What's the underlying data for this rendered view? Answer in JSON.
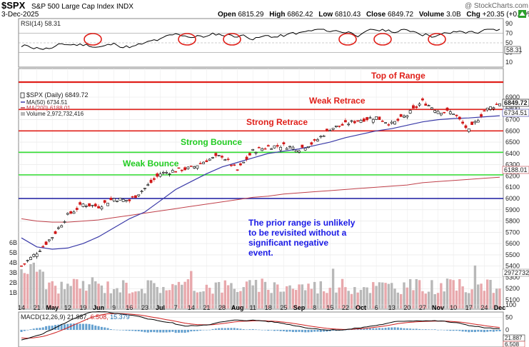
{
  "header": {
    "title": "$SPX",
    "subtitle": "S&P 500 Large Cap Index",
    "exchange": "INDX",
    "date": "3-Dec-2025",
    "watermark": "@ StockCharts.com",
    "open_label": "Open",
    "open": "6815.29",
    "high_label": "High",
    "high": "6862.42",
    "low_label": "Low",
    "low": "6810.43",
    "close_label": "Close",
    "close": "6849.72",
    "volume_label": "Volume",
    "volume": "3.0B",
    "chg_label": "Chg",
    "chg": "+20.35 (+0.30%)"
  },
  "rsi_panel": {
    "label": "RSI(14) 58.31",
    "current_badge": "58.31",
    "ticks": [
      "90",
      "70",
      "50",
      "30",
      "10"
    ]
  },
  "price_panel": {
    "legend_price": "$SPX (Daily) 6849.72",
    "legend_ma50": "MA(50) 6734.51",
    "legend_ma200": "MA(200) 6188.01",
    "legend_volume": "Volume 2,972,732,416",
    "price_badge": "6849.72",
    "ma50_badge": "6734.51",
    "ma200_badge": "6188.01",
    "volume_badge": "2972732",
    "ticks": [
      "6900",
      "6800",
      "6700",
      "6600",
      "6500",
      "6400",
      "6300",
      "6200",
      "6100",
      "6000",
      "5900",
      "5800",
      "5700",
      "5600",
      "5500",
      "5400",
      "5300",
      "5200",
      "5100"
    ],
    "volume_ticks": [
      "6B",
      "5B",
      "4B",
      "3B",
      "2B",
      "1B"
    ]
  },
  "annotations": {
    "top_of_range": "Top of Range",
    "weak_retrace": "Weak Retrace",
    "strong_retrace": "Strong Retrace",
    "strong_bounce": "Strong Bounce",
    "weak_bounce": "Weak Bounce",
    "note_lines": [
      "The prior range is unlikely",
      "to be revisited without a",
      "significant negative",
      "event."
    ]
  },
  "x_axis": {
    "labels": [
      "14",
      "21",
      "May",
      "12",
      "19",
      "Jun",
      "9",
      "16",
      "23",
      "Jul",
      "7",
      "14",
      "21",
      "28",
      "Aug",
      "11",
      "18",
      "25",
      "Sep",
      "8",
      "15",
      "22",
      "Oct",
      "6",
      "13",
      "20",
      "27",
      "Nov",
      "10",
      "17",
      "24",
      "Dec"
    ],
    "bold": [
      "May",
      "Jun",
      "Jul",
      "Aug",
      "Sep",
      "Oct",
      "Nov",
      "Dec"
    ]
  },
  "macd_panel": {
    "label_main": "MACD(12,26,9) 21.887,",
    "label_signal": "6.508,",
    "label_hist": "15.379",
    "ticks": [
      "100",
      "50",
      "0"
    ],
    "badge_main": "21.887",
    "badge_signal": "6.508"
  },
  "colors": {
    "up_candle": "#ffffff",
    "down_candle": "#d01818",
    "ma50": "#3a3aa8",
    "ma200": "#c0404a",
    "red_level": "#e0201a",
    "green_level": "#33dd33",
    "blue_level": "#1a1aa0",
    "volume_up": "#b8b8b8",
    "volume_down": "#e8a8ac",
    "rsi_line": "#000000",
    "macd_hist": "#4a90c8"
  },
  "chart_data": {
    "type": "candlestick",
    "title": "$SPX S&P 500 Large Cap Index",
    "interval": "Daily",
    "y_range": [
      5100,
      6900
    ],
    "levels": [
      {
        "name": "Top of Range",
        "price": 7020,
        "color": "red"
      },
      {
        "name": "Weak Retrace",
        "price": 6790,
        "color": "red"
      },
      {
        "name": "Strong Retrace",
        "price": 6600,
        "color": "red"
      },
      {
        "name": "Strong Bounce",
        "price": 6410,
        "color": "green"
      },
      {
        "name": "Weak Bounce",
        "price": 6210,
        "color": "green"
      },
      {
        "name": "Blue Line",
        "price": 6000,
        "color": "blue"
      }
    ],
    "x": [
      "Apr 14",
      "Apr 21",
      "May 1",
      "May 12",
      "May 19",
      "Jun 2",
      "Jun 9",
      "Jun 16",
      "Jun 23",
      "Jul 1",
      "Jul 7",
      "Jul 14",
      "Jul 21",
      "Jul 28",
      "Aug 1",
      "Aug 11",
      "Aug 18",
      "Aug 25",
      "Sep 2",
      "Sep 8",
      "Sep 15",
      "Sep 22",
      "Oct 1",
      "Oct 6",
      "Oct 13",
      "Oct 20",
      "Oct 27",
      "Nov 3",
      "Nov 10",
      "Nov 17",
      "Nov 24",
      "Dec 1"
    ],
    "series": [
      {
        "name": "$SPX",
        "values": [
          5400,
          5520,
          5660,
          5850,
          5950,
          5930,
          6000,
          5980,
          6090,
          6220,
          6250,
          6270,
          6340,
          6380,
          6250,
          6420,
          6460,
          6470,
          6440,
          6500,
          6620,
          6660,
          6700,
          6720,
          6660,
          6740,
          6860,
          6780,
          6760,
          6600,
          6780,
          6849.72
        ]
      },
      {
        "name": "MA(50)",
        "values": [
          5650,
          5570,
          5550,
          5560,
          5600,
          5660,
          5740,
          5820,
          5880,
          5980,
          6080,
          6150,
          6220,
          6280,
          6320,
          6360,
          6400,
          6420,
          6440,
          6470,
          6500,
          6540,
          6570,
          6600,
          6620,
          6650,
          6680,
          6700,
          6710,
          6715,
          6725,
          6734.51
        ]
      },
      {
        "name": "MA(200)",
        "values": [
          5820,
          5800,
          5790,
          5790,
          5800,
          5810,
          5830,
          5850,
          5870,
          5890,
          5910,
          5930,
          5950,
          5970,
          5990,
          6010,
          6020,
          6040,
          6050,
          6060,
          6070,
          6080,
          6090,
          6100,
          6110,
          6120,
          6140,
          6150,
          6160,
          6170,
          6180,
          6188.01
        ]
      }
    ],
    "rsi": {
      "name": "RSI(14)",
      "last": 58.31,
      "range": [
        0,
        100
      ]
    },
    "macd": {
      "name": "MACD(12,26,9)",
      "macd": 21.887,
      "signal": 6.508,
      "histogram": 15.379
    }
  }
}
